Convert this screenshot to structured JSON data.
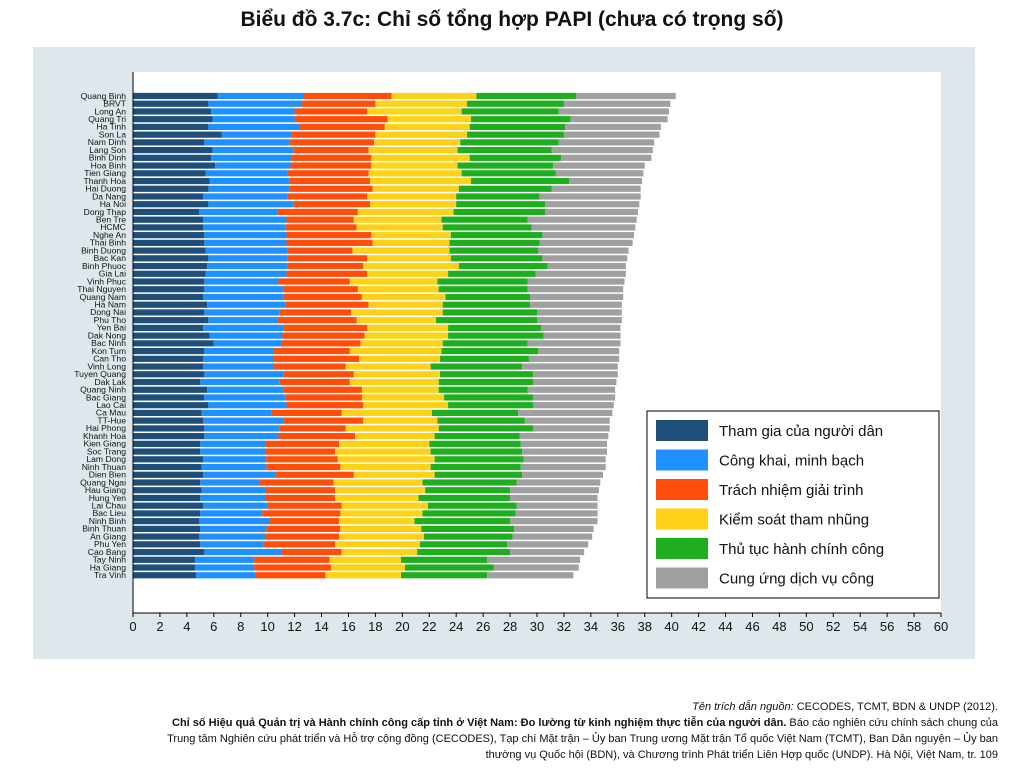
{
  "title": "Biểu đồ 3.7c: Chỉ số tổng hợp PAPI (chưa có trọng số)",
  "source": {
    "label": "Tên trích dẫn nguồn:",
    "orgs": "CECODES, TCMT, BDN & UNDP (2012).",
    "report_title": "Chỉ số Hiệu quả Quản trị và Hành chính công cấp tỉnh ở Việt Nam: Đo lường từ kinh nghiệm thực tiễn của người dân.",
    "line1_rest": "Báo cáo nghiên cứu chính sách chung của",
    "line2": "Trung tâm Nghiên cứu phát triển và Hỗ trợ cộng đồng (CECODES), Tạp chí Mặt trận – Ủy ban Trung ương Mặt trận Tổ quốc Việt Nam (TCMT), Ban Dân nguyện – Ủy ban",
    "line3": "thường vụ Quốc hội (BDN), và Chương trình Phát triển Liên Hợp quốc (UNDP). Hà Nội, Việt Nam, tr. 109"
  },
  "colors": {
    "panel_bg": "#dde7ec",
    "series": [
      "#1f4e79",
      "#1e90ff",
      "#ff4d0a",
      "#ffd21a",
      "#1fae1f",
      "#a0a0a0"
    ]
  },
  "chart_data": {
    "type": "bar",
    "orientation": "horizontal",
    "stacked": true,
    "xlim": [
      0,
      60
    ],
    "x_ticks": [
      "0",
      "2",
      "4",
      "6",
      "8",
      "10",
      "12",
      "14",
      "16",
      "18",
      "20",
      "22",
      "24",
      "26",
      "28",
      "30",
      "32",
      "34",
      "36",
      "38",
      "40",
      "42",
      "44",
      "46",
      "48",
      "50",
      "52",
      "54",
      "56",
      "58",
      "60"
    ],
    "legend_position": "bottom-right",
    "categories": [
      "Quang Binh",
      "BRVT",
      "Long An",
      "Quang Tri",
      "Ha Tinh",
      "Son La",
      "Nam Dinh",
      "Lang Son",
      "Binh Dinh",
      "Hoa Binh",
      "Tien Giang",
      "Thanh Hoa",
      "Hai Duong",
      "Da Nang",
      "Ha Noi",
      "Dong Thap",
      "Ben Tre",
      "HCMC",
      "Nghe An",
      "Thai Binh",
      "Binh Duong",
      "Bac Kan",
      "Binh Phuoc",
      "Gia Lai",
      "Vinh Phuc",
      "Thai Nguyen",
      "Quang Nam",
      "Ha Nam",
      "Dong Nai",
      "Phu Tho",
      "Yen Bai",
      "Dak Nong",
      "Bac Ninh",
      "Kon Tum",
      "Can Tho",
      "Vinh Long",
      "Tuyen Quang",
      "Dak Lak",
      "Quang Ninh",
      "Bac Giang",
      "Lao Cai",
      "Ca Mau",
      "TT-Hue",
      "Hai Phong",
      "Khanh Hoa",
      "Kien Giang",
      "Soc Trang",
      "Lam Dong",
      "Ninh Thuan",
      "Dien Bien",
      "Quang Ngai",
      "Hau Giang",
      "Hung Yen",
      "Lai Chau",
      "Bac Lieu",
      "Ninh Binh",
      "Binh Thuan",
      "An Giang",
      "Phu Yen",
      "Cao Bang",
      "Tay Ninh",
      "Ha Giang",
      "Tra Vinh"
    ],
    "totals": [
      40.3,
      39.9,
      39.8,
      39.7,
      39.2,
      39.1,
      38.7,
      38.6,
      38.5,
      38.0,
      37.9,
      37.8,
      37.7,
      37.7,
      37.6,
      37.5,
      37.4,
      37.3,
      37.2,
      37.1,
      36.8,
      36.7,
      36.6,
      36.6,
      36.5,
      36.4,
      36.4,
      36.3,
      36.3,
      36.3,
      36.2,
      36.2,
      36.2,
      36.1,
      36.1,
      36.0,
      36.0,
      35.9,
      35.8,
      35.8,
      35.7,
      35.6,
      35.4,
      35.4,
      35.3,
      35.2,
      35.2,
      35.1,
      35.1,
      34.9,
      34.7,
      34.6,
      34.5,
      34.5,
      34.5,
      34.5,
      34.2,
      34.1,
      33.8,
      33.5,
      33.2,
      33.1,
      32.7
    ],
    "series": [
      {
        "name": "Tham gia của người dân",
        "values": [
          6.3,
          5.6,
          5.8,
          5.9,
          5.6,
          6.6,
          5.3,
          5.9,
          5.8,
          6.1,
          5.4,
          5.7,
          5.6,
          5.2,
          5.6,
          4.9,
          5.2,
          5.2,
          5.3,
          5.3,
          5.4,
          5.6,
          5.5,
          5.4,
          5.3,
          5.3,
          5.2,
          5.5,
          5.3,
          5.6,
          5.2,
          5.7,
          6.0,
          5.3,
          5.2,
          5.2,
          5.3,
          5.0,
          5.5,
          5.3,
          5.6,
          5.1,
          5.2,
          5.3,
          5.3,
          5.0,
          5.0,
          5.2,
          5.1,
          5.2,
          5.0,
          5.1,
          5.0,
          5.2,
          5.0,
          4.9,
          5.0,
          4.9,
          5.0,
          5.3,
          4.6,
          4.6,
          4.7
        ]
      },
      {
        "name": "Công khai, minh bạch",
        "values": [
          6.4,
          6.9,
          6.2,
          6.1,
          6.8,
          5.2,
          6.3,
          6.0,
          6.0,
          5.6,
          6.1,
          5.9,
          6.0,
          6.3,
          6.3,
          5.8,
          6.2,
          6.1,
          6.1,
          6.1,
          6.1,
          5.9,
          6.0,
          6.0,
          5.5,
          5.9,
          6.0,
          5.8,
          5.6,
          5.1,
          6.0,
          5.4,
          5.0,
          5.1,
          5.2,
          5.2,
          5.9,
          5.9,
          5.7,
          6.0,
          5.8,
          5.2,
          6.0,
          5.6,
          5.5,
          4.8,
          4.8,
          4.7,
          4.8,
          5.4,
          4.4,
          4.7,
          4.8,
          4.8,
          4.6,
          5.2,
          4.9,
          4.9,
          4.7,
          5.7,
          4.4,
          4.4,
          4.4
        ]
      },
      {
        "name": "Trách nhiệm giải trình",
        "values": [
          6.5,
          5.5,
          5.4,
          6.9,
          6.3,
          6.2,
          6.3,
          5.6,
          5.9,
          6.0,
          6.0,
          6.0,
          6.2,
          5.9,
          5.7,
          6.0,
          5.0,
          5.3,
          6.3,
          6.4,
          4.8,
          5.9,
          5.6,
          6.0,
          5.3,
          5.5,
          5.8,
          6.2,
          5.3,
          5.9,
          6.2,
          6.1,
          5.9,
          5.7,
          6.4,
          5.4,
          5.2,
          5.2,
          5.8,
          5.7,
          5.7,
          5.2,
          5.9,
          4.9,
          5.7,
          5.5,
          5.2,
          5.3,
          5.5,
          5.8,
          5.5,
          5.2,
          5.2,
          5.5,
          5.8,
          5.2,
          5.5,
          5.5,
          5.3,
          4.5,
          5.6,
          5.7,
          5.2
        ]
      },
      {
        "name": "Kiểm soát tham nhũng",
        "values": [
          6.3,
          6.8,
          7.0,
          6.2,
          6.3,
          6.8,
          6.4,
          6.6,
          7.3,
          6.4,
          6.9,
          7.5,
          6.4,
          6.6,
          6.4,
          7.1,
          6.5,
          6.4,
          5.9,
          5.7,
          7.2,
          6.2,
          7.1,
          6.0,
          6.5,
          6.0,
          6.2,
          5.5,
          6.8,
          5.9,
          6.0,
          6.2,
          6.1,
          6.8,
          6.0,
          6.3,
          6.4,
          6.6,
          5.7,
          6.1,
          6.3,
          6.7,
          5.5,
          6.9,
          5.9,
          6.7,
          7.1,
          7.2,
          6.7,
          6.0,
          6.6,
          6.7,
          6.2,
          6.4,
          6.1,
          5.6,
          6.0,
          6.3,
          6.3,
          5.6,
          5.3,
          5.5,
          5.6
        ]
      },
      {
        "name": "Thủ tục hành chính công",
        "values": [
          7.4,
          7.2,
          7.2,
          7.4,
          7.1,
          7.2,
          7.3,
          7.0,
          6.8,
          7.1,
          7.0,
          7.3,
          6.9,
          6.2,
          6.6,
          6.8,
          6.4,
          6.6,
          6.8,
          6.7,
          6.6,
          6.8,
          6.6,
          6.5,
          6.7,
          6.6,
          6.3,
          6.5,
          7.0,
          7.5,
          6.9,
          7.1,
          6.3,
          7.2,
          6.6,
          6.8,
          6.9,
          7.0,
          6.6,
          6.6,
          6.3,
          6.4,
          6.5,
          7.0,
          6.3,
          6.8,
          6.8,
          6.6,
          6.7,
          6.5,
          7.0,
          6.3,
          6.8,
          6.6,
          6.9,
          7.1,
          6.9,
          6.6,
          6.5,
          6.9,
          6.4,
          6.6,
          6.4
        ]
      },
      {
        "name": "Cung ứng dịch vụ công",
        "values": [
          7.4,
          7.9,
          8.2,
          7.2,
          7.1,
          7.1,
          7.1,
          7.5,
          6.7,
          6.8,
          6.5,
          5.4,
          6.6,
          7.5,
          7.0,
          6.9,
          8.1,
          7.7,
          6.8,
          6.9,
          6.7,
          6.3,
          5.8,
          6.7,
          7.2,
          7.1,
          6.9,
          6.8,
          6.3,
          6.3,
          5.9,
          5.7,
          6.9,
          6.0,
          6.7,
          7.1,
          6.3,
          6.2,
          6.5,
          6.1,
          6.0,
          7.0,
          6.3,
          5.7,
          6.6,
          6.4,
          6.3,
          6.1,
          6.3,
          6.0,
          6.2,
          6.6,
          6.5,
          6.0,
          6.1,
          6.5,
          5.9,
          5.9,
          6.0,
          5.5,
          6.9,
          6.3,
          6.4
        ]
      }
    ]
  }
}
